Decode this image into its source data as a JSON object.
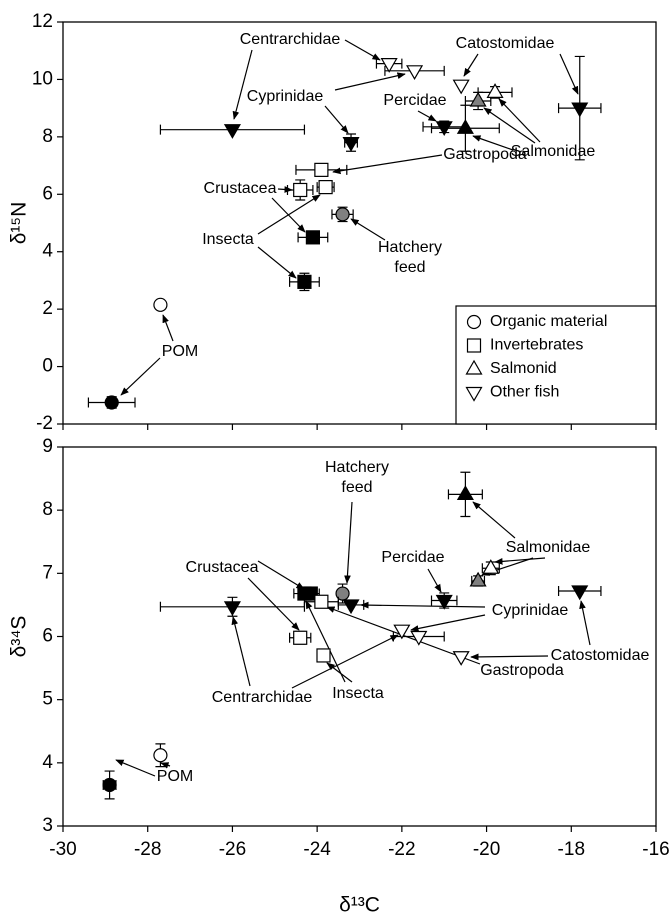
{
  "chart_data": [
    {
      "type": "scatter",
      "ylabel": "δ¹⁵N",
      "xlim": [
        -30,
        -16
      ],
      "xticks": [
        -30,
        -28,
        -26,
        -24,
        -22,
        -20,
        -18,
        -16
      ],
      "ylim": [
        -2,
        12
      ],
      "yticks": [
        -2,
        0,
        2,
        4,
        6,
        8,
        10,
        12
      ],
      "legend": "lower right",
      "series": [
        {
          "name": "Organic material",
          "marker": "circle",
          "x": [
            -27.7,
            -28.85,
            -23.4
          ],
          "values": [
            2.15,
            -1.25,
            5.3
          ],
          "xerr": [
            null,
            0.55,
            0.25
          ],
          "yerr": [
            null,
            0.2,
            0.25
          ],
          "colors": [
            "#ffffff",
            "#000000",
            "#808080"
          ]
        },
        {
          "name": "Invertebrates",
          "marker": "square",
          "x": [
            -23.9,
            -24.4,
            -23.8,
            -24.1,
            -24.3
          ],
          "values": [
            6.85,
            6.15,
            6.25,
            4.5,
            2.95
          ],
          "xerr": [
            0.6,
            0.3,
            0.2,
            0.35,
            0.35
          ],
          "yerr": [
            0.2,
            0.35,
            0.2,
            0.15,
            0.3
          ],
          "colors": [
            "#ffffff",
            "#ffffff",
            "#ffffff",
            "#000000",
            "#000000"
          ]
        },
        {
          "name": "Salmonid",
          "marker": "triangle-up",
          "x": [
            -20.2,
            -19.8,
            -20.5
          ],
          "values": [
            9.25,
            9.55,
            8.3
          ],
          "xerr": [
            0.3,
            0.4,
            0.8
          ],
          "yerr": [
            0.3,
            0.2,
            0.8
          ],
          "colors": [
            "#808080",
            "#ffffff",
            "#000000"
          ]
        },
        {
          "name": "Other fish",
          "marker": "triangle-down",
          "x": [
            -26,
            -22.3,
            -21.7,
            -23.2,
            -21,
            -20.6,
            -17.8
          ],
          "values": [
            8.25,
            10.55,
            10.3,
            7.8,
            8.35,
            9.8,
            9.0
          ],
          "xerr": [
            1.7,
            0.3,
            0.7,
            0.15,
            0.5,
            null,
            0.5
          ],
          "yerr": [
            null,
            null,
            null,
            0.3,
            0.2,
            null,
            1.8
          ],
          "colors": [
            "#000000",
            "#ffffff",
            "#ffffff",
            "#000000",
            "#000000",
            "#ffffff",
            "#000000"
          ]
        }
      ],
      "annotations": [
        "Centrarchidae",
        "Cyprinidae",
        "Catostomidae",
        "Percidae",
        "Salmonidae",
        "Gastropoda",
        "Crustacea",
        "Insecta",
        "Hatchery feed",
        "POM"
      ]
    },
    {
      "type": "scatter",
      "ylabel": "δ³⁴S",
      "xlabel": "δ¹³C",
      "xlim": [
        -30,
        -16
      ],
      "xticks": [
        -30,
        -28,
        -26,
        -24,
        -22,
        -20,
        -18,
        -16
      ],
      "ylim": [
        3,
        9
      ],
      "yticks": [
        3,
        4,
        5,
        6,
        7,
        8,
        9
      ],
      "series": [
        {
          "marker": "circle",
          "x": [
            -28.9,
            -27.7,
            -23.4
          ],
          "values": [
            3.65,
            4.12,
            6.68
          ],
          "xerr": [
            0.15,
            null,
            null
          ],
          "yerr": [
            0.22,
            0.18,
            0.15
          ],
          "colors": [
            "#000000",
            "#ffffff",
            "#808080"
          ]
        },
        {
          "marker": "square",
          "x": [
            -24.4,
            -23.85,
            -24.3,
            -24.15,
            -23.9
          ],
          "values": [
            5.98,
            5.7,
            6.68,
            6.68,
            6.55
          ],
          "xerr": [
            0.25,
            0.15,
            0.25,
            0.2,
            0.4
          ],
          "yerr": [
            0.1,
            0.08,
            0.08,
            0.08,
            0.05
          ],
          "colors": [
            "#ffffff",
            "#ffffff",
            "#000000",
            "#000000",
            "#ffffff"
          ]
        },
        {
          "marker": "triangle-up",
          "x": [
            -20.5,
            -20.2,
            -19.9
          ],
          "values": [
            8.25,
            6.88,
            7.08
          ],
          "xerr": [
            0.4,
            0.15,
            0.2
          ],
          "yerr": [
            0.35,
            0.08,
            0.1
          ],
          "colors": [
            "#000000",
            "#808080",
            "#ffffff"
          ]
        },
        {
          "marker": "triangle-down",
          "x": [
            -26,
            -23.2,
            -22,
            -21.6,
            -21,
            -20.6,
            -17.8
          ],
          "values": [
            6.47,
            6.5,
            6.1,
            6.0,
            6.57,
            5.68,
            6.72
          ],
          "xerr": [
            1.7,
            0.3,
            null,
            0.6,
            0.3,
            null,
            0.5
          ],
          "yerr": [
            0.15,
            null,
            null,
            null,
            0.12,
            null,
            null
          ],
          "colors": [
            "#000000",
            "#000000",
            "#ffffff",
            "#ffffff",
            "#000000",
            "#ffffff",
            "#000000"
          ]
        }
      ],
      "annotations": [
        "Hatchery feed",
        "Salmonidae",
        "Percidae",
        "Crustacea",
        "Cyprinidae",
        "Catostomidae",
        "Gastropoda",
        "Centrarchidae",
        "Insecta",
        "POM"
      ]
    }
  ]
}
